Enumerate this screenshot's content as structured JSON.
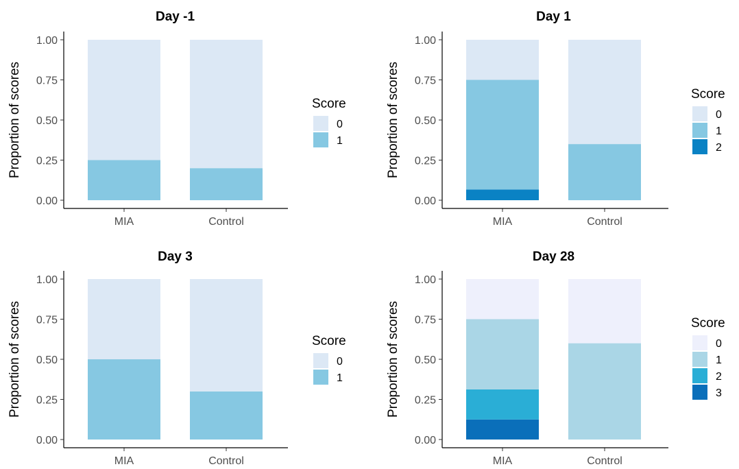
{
  "chart_data": [
    {
      "type": "bar",
      "stacked": true,
      "title": "Day -1",
      "xlabel": "",
      "ylabel": "Proportion of scores",
      "categories": [
        "MIA",
        "Control"
      ],
      "ylim": [
        0,
        1
      ],
      "yticks": [
        "0.00",
        "0.25",
        "0.50",
        "0.75",
        "1.00"
      ],
      "legend_title": "Score",
      "legend_position": "right",
      "series": [
        {
          "name": "0",
          "color": "#dce8f5",
          "values": [
            0.75,
            0.8
          ]
        },
        {
          "name": "1",
          "color": "#86c8e2",
          "values": [
            0.25,
            0.2
          ]
        }
      ]
    },
    {
      "type": "bar",
      "stacked": true,
      "title": "Day 1",
      "xlabel": "",
      "ylabel": "Proportion of scores",
      "categories": [
        "MIA",
        "Control"
      ],
      "ylim": [
        0,
        1
      ],
      "yticks": [
        "0.00",
        "0.25",
        "0.50",
        "0.75",
        "1.00"
      ],
      "legend_title": "Score",
      "legend_position": "right",
      "series": [
        {
          "name": "0",
          "color": "#dce8f5",
          "values": [
            0.25,
            0.65
          ]
        },
        {
          "name": "1",
          "color": "#86c8e2",
          "values": [
            0.683,
            0.35
          ]
        },
        {
          "name": "2",
          "color": "#0a82c4",
          "values": [
            0.067,
            0.0
          ]
        }
      ]
    },
    {
      "type": "bar",
      "stacked": true,
      "title": "Day 3",
      "xlabel": "",
      "ylabel": "Proportion of scores",
      "categories": [
        "MIA",
        "Control"
      ],
      "ylim": [
        0,
        1
      ],
      "yticks": [
        "0.00",
        "0.25",
        "0.50",
        "0.75",
        "1.00"
      ],
      "legend_title": "Score",
      "legend_position": "right",
      "series": [
        {
          "name": "0",
          "color": "#dce8f5",
          "values": [
            0.5,
            0.7
          ]
        },
        {
          "name": "1",
          "color": "#86c8e2",
          "values": [
            0.5,
            0.3
          ]
        }
      ]
    },
    {
      "type": "bar",
      "stacked": true,
      "title": "Day 28",
      "xlabel": "",
      "ylabel": "Proportion of scores",
      "categories": [
        "MIA",
        "Control"
      ],
      "ylim": [
        0,
        1
      ],
      "yticks": [
        "0.00",
        "0.25",
        "0.50",
        "0.75",
        "1.00"
      ],
      "legend_title": "Score",
      "legend_position": "right",
      "series": [
        {
          "name": "0",
          "color": "#eef0fc",
          "values": [
            0.25,
            0.4
          ]
        },
        {
          "name": "1",
          "color": "#aad6e6",
          "values": [
            0.4375,
            0.6
          ]
        },
        {
          "name": "2",
          "color": "#2aaed6",
          "values": [
            0.1875,
            0.0
          ]
        },
        {
          "name": "3",
          "color": "#0a6fba",
          "values": [
            0.125,
            0.0
          ]
        }
      ]
    }
  ]
}
